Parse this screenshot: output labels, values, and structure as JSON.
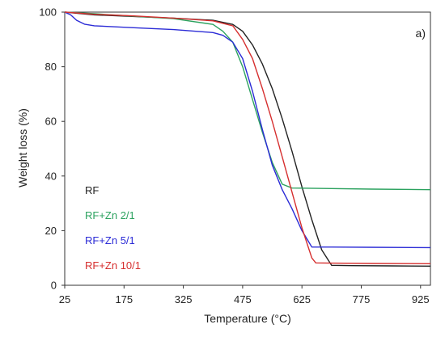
{
  "chart_data": {
    "type": "line",
    "panel_label": "a)",
    "xlabel": "Temperature (°C)",
    "ylabel": "Weight loss (%)",
    "xlim": [
      25,
      950
    ],
    "ylim": [
      0,
      100
    ],
    "x_ticks": [
      25,
      175,
      325,
      475,
      625,
      775,
      925
    ],
    "y_ticks": [
      0,
      20,
      40,
      60,
      80,
      100
    ],
    "grid": false,
    "legend_position": "lower-left inside",
    "series": [
      {
        "name": "RF",
        "color": "#222222",
        "points": [
          [
            25,
            100
          ],
          [
            100,
            99
          ],
          [
            200,
            98.4
          ],
          [
            300,
            97.8
          ],
          [
            400,
            97
          ],
          [
            450,
            95.5
          ],
          [
            475,
            93
          ],
          [
            500,
            88
          ],
          [
            525,
            81
          ],
          [
            550,
            72
          ],
          [
            575,
            61
          ],
          [
            600,
            49
          ],
          [
            625,
            36
          ],
          [
            650,
            24
          ],
          [
            675,
            13
          ],
          [
            700,
            7.3
          ],
          [
            750,
            7.2
          ],
          [
            850,
            7.1
          ],
          [
            950,
            7
          ]
        ]
      },
      {
        "name": "RF+Zn 2/1",
        "color": "#2ca25f",
        "points": [
          [
            25,
            100
          ],
          [
            100,
            99.4
          ],
          [
            200,
            98.5
          ],
          [
            300,
            97.6
          ],
          [
            400,
            95.5
          ],
          [
            425,
            93
          ],
          [
            450,
            89
          ],
          [
            475,
            80
          ],
          [
            500,
            68
          ],
          [
            525,
            56
          ],
          [
            550,
            45
          ],
          [
            575,
            37
          ],
          [
            600,
            35.6
          ],
          [
            700,
            35.4
          ],
          [
            800,
            35.2
          ],
          [
            950,
            35
          ]
        ]
      },
      {
        "name": "RF+Zn 5/1",
        "color": "#2b2bd6",
        "points": [
          [
            25,
            100
          ],
          [
            40,
            99
          ],
          [
            55,
            97
          ],
          [
            75,
            95.6
          ],
          [
            100,
            95
          ],
          [
            200,
            94.3
          ],
          [
            300,
            93.6
          ],
          [
            400,
            92.5
          ],
          [
            425,
            91.5
          ],
          [
            450,
            89
          ],
          [
            475,
            83
          ],
          [
            500,
            71
          ],
          [
            525,
            57
          ],
          [
            550,
            44
          ],
          [
            575,
            35
          ],
          [
            600,
            28
          ],
          [
            625,
            20
          ],
          [
            650,
            14
          ],
          [
            700,
            14
          ],
          [
            800,
            13.9
          ],
          [
            950,
            13.8
          ]
        ]
      },
      {
        "name": "RF+Zn 10/1",
        "color": "#d62f2f",
        "points": [
          [
            25,
            100
          ],
          [
            100,
            99.2
          ],
          [
            200,
            98.6
          ],
          [
            300,
            97.8
          ],
          [
            400,
            96.8
          ],
          [
            450,
            95
          ],
          [
            475,
            90
          ],
          [
            500,
            83
          ],
          [
            525,
            72
          ],
          [
            550,
            60
          ],
          [
            575,
            47
          ],
          [
            600,
            34
          ],
          [
            625,
            21
          ],
          [
            650,
            10
          ],
          [
            660,
            8.2
          ],
          [
            700,
            8.1
          ],
          [
            800,
            8
          ],
          [
            950,
            7.9
          ]
        ]
      }
    ]
  }
}
